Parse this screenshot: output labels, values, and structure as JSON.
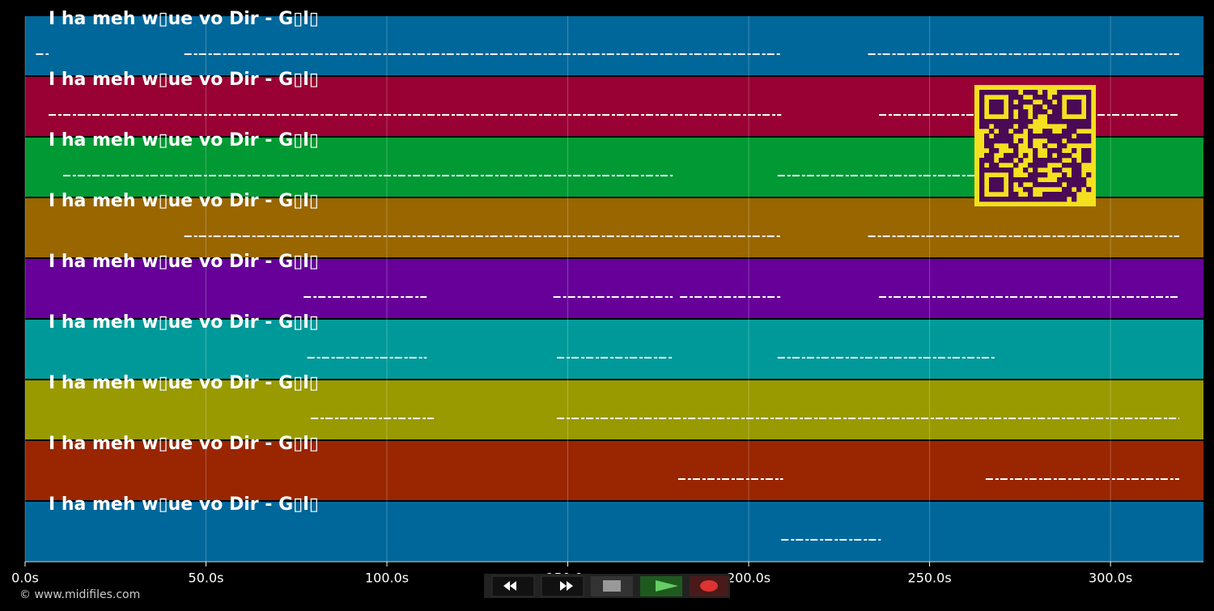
{
  "chart_data": {
    "type": "midi-roll",
    "xlim": [
      0,
      325.7
    ],
    "xticks": [
      {
        "value": 0,
        "label": "0.0s"
      },
      {
        "value": 50,
        "label": "50.0s"
      },
      {
        "value": 100,
        "label": "100.0s"
      },
      {
        "value": 150,
        "label": "150.0s"
      },
      {
        "value": 200,
        "label": "200.0s"
      },
      {
        "value": 250,
        "label": "250.0s"
      },
      {
        "value": 300,
        "label": "300.0s"
      }
    ],
    "grid": true,
    "tracks": [
      {
        "name": "I ha meh w▯ue vo Dir - G▯l▯",
        "color": "#00679a",
        "segments": [
          [
            3,
            6.5
          ],
          [
            44,
            209
          ],
          [
            233,
            319
          ]
        ]
      },
      {
        "name": "I ha meh w▯ue vo Dir - G▯l▯",
        "color": "#990033",
        "segments": [
          [
            6.5,
            209
          ],
          [
            236,
            319
          ]
        ]
      },
      {
        "name": "I ha meh w▯ue vo Dir - G▯l▯",
        "color": "#009933",
        "segments": [
          [
            10.5,
            179
          ],
          [
            208,
            268
          ]
        ]
      },
      {
        "name": "I ha meh w▯ue vo Dir - G▯l▯",
        "color": "#996600",
        "segments": [
          [
            44,
            209
          ],
          [
            233,
            319
          ]
        ]
      },
      {
        "name": "I ha meh w▯ue vo Dir - G▯l▯",
        "color": "#660099",
        "segments": [
          [
            77,
            111
          ],
          [
            146,
            179
          ],
          [
            181,
            209
          ],
          [
            236,
            319
          ]
        ]
      },
      {
        "name": "I ha meh w▯ue vo Dir - G▯l▯",
        "color": "#009999",
        "segments": [
          [
            78,
            111
          ],
          [
            147,
            179
          ],
          [
            208,
            268
          ]
        ]
      },
      {
        "name": "I ha meh w▯ue vo Dir - G▯l▯",
        "color": "#999900",
        "segments": [
          [
            79,
            113
          ],
          [
            147,
            319
          ]
        ]
      },
      {
        "name": "I ha meh w▯ue vo Dir - G▯l▯",
        "color": "#992600",
        "segments": [
          [
            180.5,
            209.5
          ],
          [
            265.5,
            319
          ]
        ]
      },
      {
        "name": "I ha meh w▯ue vo Dir - G▯l▯",
        "color": "#00679a",
        "segments": [
          [
            209,
            236.5
          ]
        ]
      }
    ]
  },
  "footer": {
    "copyright": "© www.midifiles.com"
  }
}
